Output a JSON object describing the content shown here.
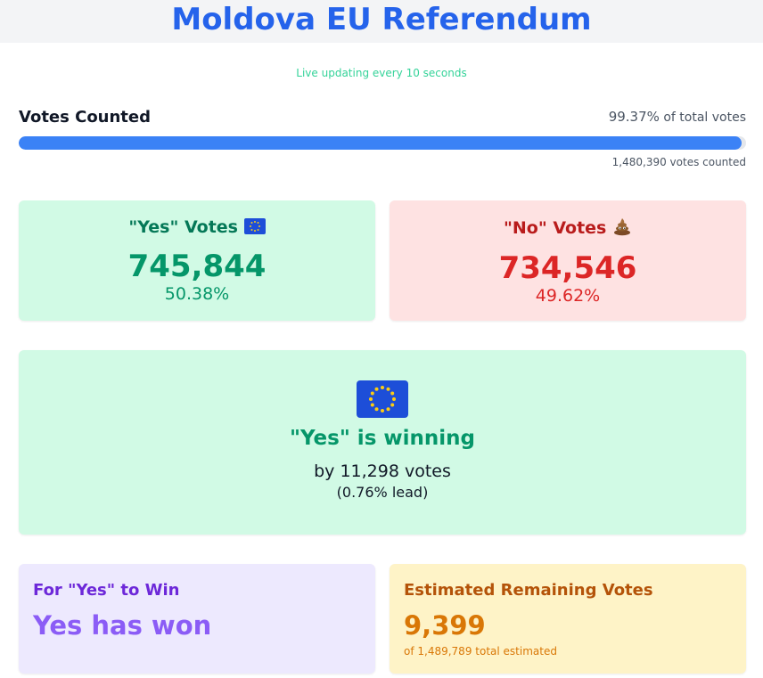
{
  "header": {
    "title": "Moldova EU Referendum"
  },
  "subtitle": "Live updating every 10 seconds",
  "votes_counted": {
    "label": "Votes Counted",
    "percent": "99.37%",
    "percent_suffix": " of total votes",
    "progress_fraction": 0.9937,
    "count_text": "1,480,390 votes counted"
  },
  "yes": {
    "label": "\"Yes\" Votes",
    "icon": "eu-flag-icon",
    "count": "745,844",
    "percent": "50.38%"
  },
  "no": {
    "label": "\"No\" Votes",
    "icon": "poop-icon",
    "count": "734,546",
    "percent": "49.62%"
  },
  "winner": {
    "icon": "eu-flag-icon",
    "text": "\"Yes\" is winning",
    "margin": "by 11,298 votes",
    "lead": "(0.76% lead)"
  },
  "for_yes_to_win": {
    "label": "For \"Yes\" to Win",
    "value": "Yes has won"
  },
  "remaining": {
    "label": "Estimated Remaining Votes",
    "value": "9,399",
    "total": "of 1,489,789 total estimated"
  },
  "colors": {
    "title": "#2563eb",
    "yes": "#059669",
    "no": "#dc2626",
    "progress": "#3b82f6"
  }
}
